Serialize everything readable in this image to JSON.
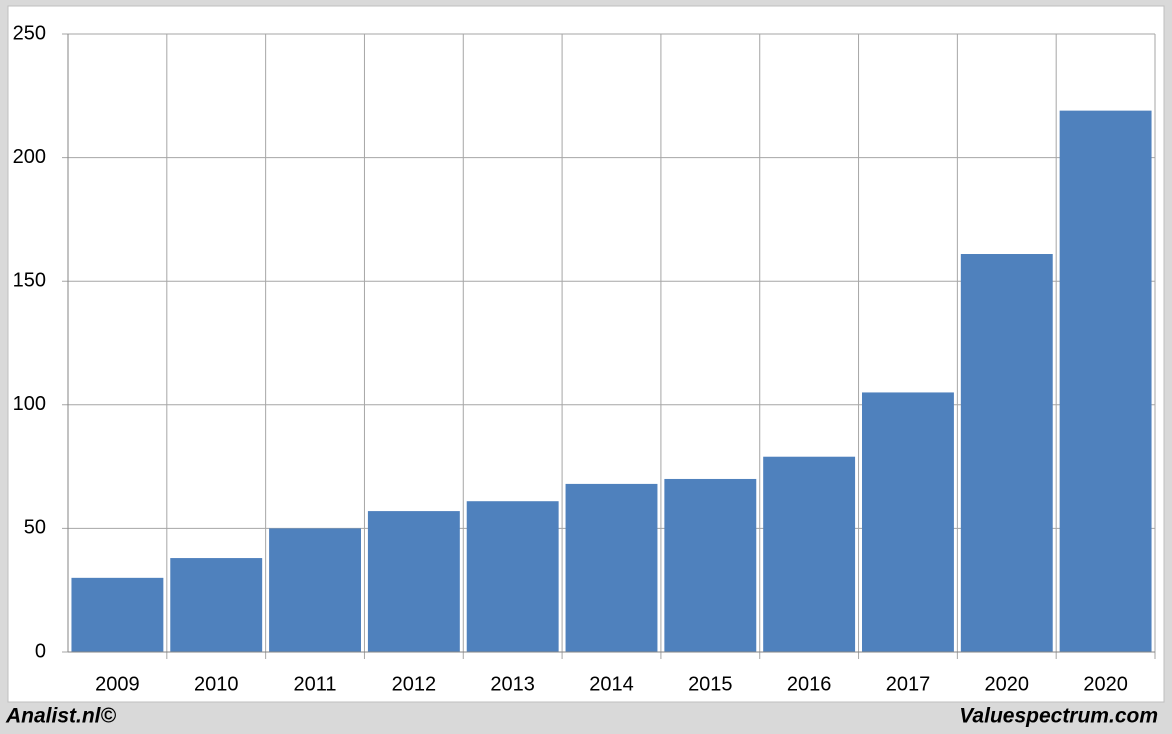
{
  "chart_data": {
    "type": "bar",
    "categories": [
      "2009",
      "2010",
      "2011",
      "2012",
      "2013",
      "2014",
      "2015",
      "2016",
      "2017",
      "2020",
      "2020"
    ],
    "values": [
      30,
      38,
      50,
      57,
      61,
      68,
      70,
      79,
      105,
      161,
      219
    ],
    "color": "#4f81bd",
    "ylim": [
      0,
      250
    ],
    "yticks": [
      0,
      50,
      100,
      150,
      200,
      250
    ],
    "grid": true
  },
  "footer": {
    "left": "Analist.nl©",
    "right": "Valuespectrum.com"
  }
}
